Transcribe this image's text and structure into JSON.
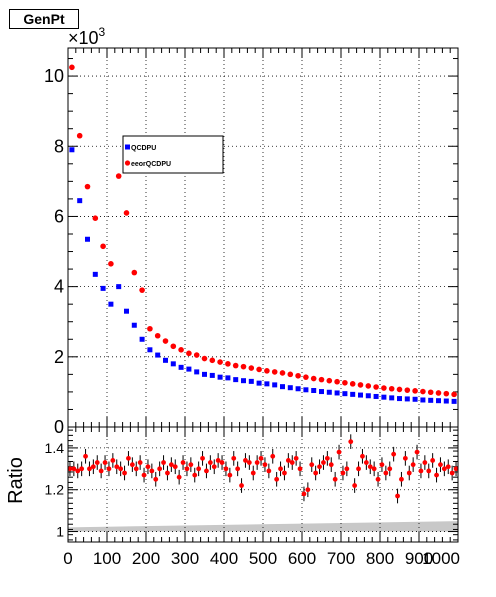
{
  "title": "GenPt",
  "chart_data": [
    {
      "panel": "main",
      "type": "scatter",
      "title": "GenPt",
      "y_exponent_label": "×10",
      "y_exponent_power": "3",
      "y_unit_multiplier": 1000,
      "xlim": [
        0,
        1000
      ],
      "ylim": [
        0,
        10800
      ],
      "x_ticks": [
        "0",
        "100",
        "200",
        "300",
        "400",
        "500",
        "600",
        "700",
        "800",
        "900",
        "1000"
      ],
      "y_ticks": [
        "0",
        "2",
        "4",
        "6",
        "8",
        "10"
      ],
      "grid": true,
      "legend_placement": "top-left",
      "series": [
        {
          "name": "QCDPU",
          "color": "#0000ff",
          "marker": "square",
          "x": [
            10,
            30,
            50,
            70,
            90,
            110,
            130,
            150,
            170,
            190,
            210,
            230,
            250,
            270,
            290,
            310,
            330,
            350,
            370,
            390,
            410,
            430,
            450,
            470,
            490,
            510,
            530,
            550,
            570,
            590,
            610,
            630,
            650,
            670,
            690,
            710,
            730,
            750,
            770,
            790,
            810,
            830,
            850,
            870,
            890,
            910,
            930,
            950,
            970,
            990
          ],
          "y": [
            7900,
            6450,
            5350,
            4350,
            3950,
            3500,
            4000,
            3300,
            2900,
            2500,
            2200,
            2050,
            1900,
            1800,
            1700,
            1650,
            1570,
            1500,
            1470,
            1420,
            1400,
            1350,
            1320,
            1300,
            1250,
            1230,
            1200,
            1150,
            1120,
            1090,
            1060,
            1040,
            1010,
            990,
            970,
            950,
            930,
            910,
            890,
            870,
            850,
            830,
            810,
            800,
            790,
            770,
            760,
            750,
            740,
            730
          ]
        },
        {
          "name": "eeorQCDPU",
          "color": "#ff0000",
          "marker": "circle",
          "x": [
            10,
            30,
            50,
            70,
            90,
            110,
            130,
            150,
            170,
            190,
            210,
            230,
            250,
            270,
            290,
            310,
            330,
            350,
            370,
            390,
            410,
            430,
            450,
            470,
            490,
            510,
            530,
            550,
            570,
            590,
            610,
            630,
            650,
            670,
            690,
            710,
            730,
            750,
            770,
            790,
            810,
            830,
            850,
            870,
            890,
            910,
            930,
            950,
            970,
            990
          ],
          "y": [
            10250,
            8300,
            6850,
            5950,
            5150,
            4650,
            7150,
            6100,
            4400,
            3900,
            2800,
            2600,
            2450,
            2300,
            2200,
            2100,
            2050,
            1950,
            1900,
            1850,
            1800,
            1750,
            1720,
            1680,
            1640,
            1600,
            1570,
            1540,
            1500,
            1460,
            1420,
            1380,
            1350,
            1320,
            1290,
            1260,
            1230,
            1200,
            1170,
            1140,
            1110,
            1090,
            1070,
            1050,
            1030,
            1010,
            990,
            970,
            950,
            930
          ]
        }
      ]
    },
    {
      "panel": "ratio",
      "type": "scatter",
      "ylabel": "Ratio",
      "xlim": [
        0,
        1000
      ],
      "ylim": [
        0.95,
        1.5
      ],
      "x_ticks": [
        "0",
        "100",
        "200",
        "300",
        "400",
        "500",
        "600",
        "700",
        "800",
        "900",
        "1000"
      ],
      "y_ticks": [
        "1",
        "1.2",
        "1.4"
      ],
      "y_tick_values": [
        1,
        1.2,
        1.4
      ],
      "grid": true,
      "band": {
        "color": "#c8c8c8",
        "x": [
          0,
          1000
        ],
        "upper_start": 1.02,
        "upper_end": 1.05,
        "lower": 1.0
      },
      "series": [
        {
          "color": "#ff0000",
          "marker": "circle",
          "x": [
            5,
            15,
            25,
            35,
            45,
            55,
            65,
            75,
            85,
            95,
            105,
            115,
            125,
            135,
            145,
            155,
            165,
            175,
            185,
            195,
            205,
            215,
            225,
            235,
            245,
            255,
            265,
            275,
            285,
            295,
            305,
            315,
            325,
            335,
            345,
            355,
            365,
            375,
            385,
            395,
            405,
            415,
            425,
            435,
            445,
            455,
            465,
            475,
            485,
            495,
            505,
            515,
            525,
            535,
            545,
            555,
            565,
            575,
            585,
            595,
            605,
            615,
            625,
            635,
            645,
            655,
            665,
            675,
            685,
            695,
            705,
            715,
            725,
            735,
            745,
            755,
            765,
            775,
            785,
            795,
            805,
            815,
            825,
            835,
            845,
            855,
            865,
            875,
            885,
            895,
            905,
            915,
            925,
            935,
            945,
            955,
            965,
            975,
            985,
            995
          ],
          "y": [
            1.3,
            1.3,
            1.29,
            1.3,
            1.36,
            1.3,
            1.31,
            1.33,
            1.29,
            1.33,
            1.3,
            1.34,
            1.31,
            1.3,
            1.28,
            1.35,
            1.32,
            1.3,
            1.33,
            1.27,
            1.31,
            1.29,
            1.25,
            1.3,
            1.33,
            1.28,
            1.32,
            1.31,
            1.26,
            1.33,
            1.3,
            1.32,
            1.27,
            1.3,
            1.35,
            1.29,
            1.33,
            1.31,
            1.34,
            1.33,
            1.3,
            1.27,
            1.35,
            1.3,
            1.22,
            1.34,
            1.33,
            1.28,
            1.33,
            1.35,
            1.32,
            1.29,
            1.36,
            1.25,
            1.3,
            1.28,
            1.34,
            1.33,
            1.35,
            1.3,
            1.18,
            1.2,
            1.32,
            1.28,
            1.31,
            1.33,
            1.35,
            1.32,
            1.25,
            1.38,
            1.28,
            1.3,
            1.43,
            1.22,
            1.3,
            1.36,
            1.33,
            1.31,
            1.3,
            1.25,
            1.32,
            1.28,
            1.3,
            1.37,
            1.17,
            1.25,
            1.35,
            1.28,
            1.32,
            1.38,
            1.29,
            1.33,
            1.29,
            1.34,
            1.27,
            1.32,
            1.3,
            1.31,
            1.28,
            1.3
          ],
          "errors": 0.035
        }
      ]
    }
  ]
}
